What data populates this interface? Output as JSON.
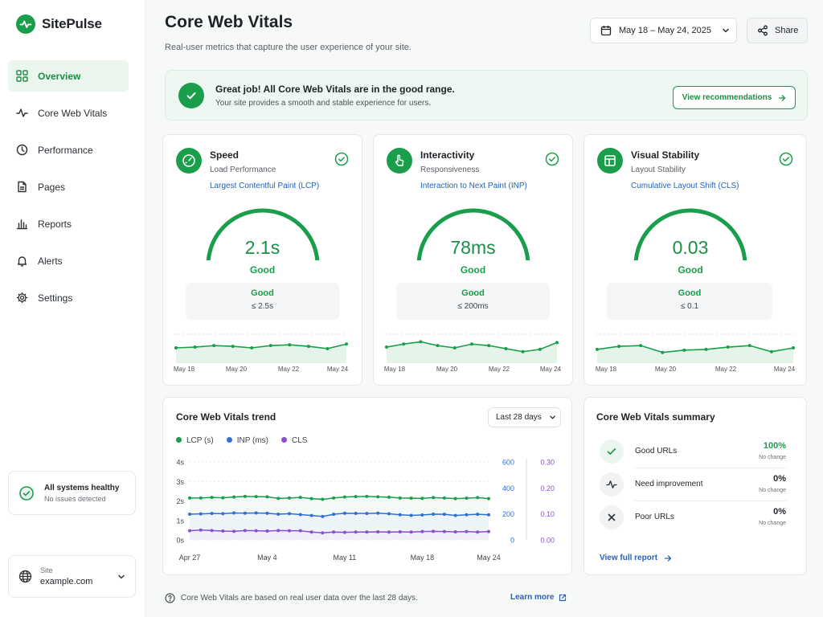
{
  "app": {
    "name": "SitePulse"
  },
  "colors": {
    "accent": "#1a9e4b",
    "lcp": "#1a9e4b",
    "inp": "#2f6fd6",
    "cls": "#8a4fcf"
  },
  "sidebar": {
    "items": [
      {
        "label": "Overview",
        "icon": "grid-icon",
        "active": true
      },
      {
        "label": "Core Web Vitals",
        "icon": "pulse-icon"
      },
      {
        "label": "Performance",
        "icon": "clock-icon"
      },
      {
        "label": "Pages",
        "icon": "page-icon"
      },
      {
        "label": "Reports",
        "icon": "bar-chart-icon"
      },
      {
        "label": "Alerts",
        "icon": "bell-icon"
      },
      {
        "label": "Settings",
        "icon": "gear-icon"
      }
    ],
    "health": {
      "title": "All systems healthy",
      "subtitle": "No issues detected"
    },
    "site": {
      "label": "Site",
      "value": "example.com"
    }
  },
  "header": {
    "title": "Core Web Vitals",
    "subtitle": "Real-user metrics that capture the user experience of your site.",
    "date_range": "May 18 – May 24, 2025",
    "share_label": "Share"
  },
  "banner": {
    "title": "Great job! All Core Web Vitals are in the good range.",
    "subtitle": "Your site provides a smooth and stable experience for users.",
    "button": "View recommendations"
  },
  "metrics": [
    {
      "title": "Speed",
      "subtitle": "Load Performance",
      "metric": "Largest Contentful Paint (LCP)",
      "value": "2.1s",
      "rating": "Good",
      "threshold_label": "Good",
      "threshold": "≤ 2.5s",
      "gauge_level": 0.95,
      "spark": [
        2.0,
        2.1,
        2.3,
        2.2,
        2.0,
        2.3,
        2.4,
        2.2,
        1.9,
        2.5
      ],
      "spark_x": [
        "May 18",
        "May 20",
        "May 22",
        "May 24"
      ]
    },
    {
      "title": "Interactivity",
      "subtitle": "Responsiveness",
      "metric": "Interaction to Next Paint (INP)",
      "value": "78ms",
      "rating": "Good",
      "threshold_label": "Good",
      "threshold": "≤ 200ms",
      "gauge_level": 0.95,
      "spark": [
        2.1,
        2.5,
        2.8,
        2.3,
        2.0,
        2.5,
        2.3,
        1.9,
        1.5,
        1.8,
        2.7
      ],
      "spark_x": [
        "May 18",
        "May 20",
        "May 22",
        "May 24"
      ]
    },
    {
      "title": "Visual Stability",
      "subtitle": "Layout Stability",
      "metric": "Cumulative Layout Shift (CLS)",
      "value": "0.03",
      "rating": "Good",
      "threshold_label": "Good",
      "threshold": "≤ 0.1",
      "gauge_level": 0.95,
      "spark": [
        1.8,
        2.2,
        2.3,
        1.4,
        1.7,
        1.8,
        2.1,
        2.3,
        1.5,
        2.0
      ],
      "spark_x": [
        "May 18",
        "May 20",
        "May 22",
        "May 24"
      ]
    }
  ],
  "trend": {
    "title": "Core Web Vitals trend",
    "range": "Last 28 days",
    "legend": [
      "LCP (s)",
      "INP (ms)",
      "CLS"
    ],
    "y_left": [
      "4s",
      "3s",
      "2s",
      "1s",
      "0s"
    ],
    "y_right1": [
      "600",
      "400",
      "200",
      "0"
    ],
    "y_right2": [
      "0.30",
      "0.20",
      "0.10",
      "0.00"
    ],
    "x_labels": [
      "Apr 27",
      "May 4",
      "May 11",
      "May 18",
      "May 24"
    ]
  },
  "chart_data": {
    "type": "line",
    "x": [
      "Apr 27",
      "Apr 28",
      "Apr 29",
      "Apr 30",
      "May 1",
      "May 2",
      "May 3",
      "May 4",
      "May 5",
      "May 6",
      "May 7",
      "May 8",
      "May 9",
      "May 10",
      "May 11",
      "May 12",
      "May 13",
      "May 14",
      "May 15",
      "May 16",
      "May 17",
      "May 18",
      "May 19",
      "May 20",
      "May 21",
      "May 22",
      "May 23",
      "May 24"
    ],
    "series": [
      {
        "name": "LCP (s)",
        "axis": "left",
        "values": [
          2.15,
          2.15,
          2.18,
          2.16,
          2.2,
          2.23,
          2.22,
          2.21,
          2.13,
          2.15,
          2.18,
          2.12,
          2.08,
          2.15,
          2.2,
          2.22,
          2.23,
          2.21,
          2.19,
          2.15,
          2.14,
          2.13,
          2.17,
          2.15,
          2.12,
          2.14,
          2.17,
          2.12
        ]
      },
      {
        "name": "INP (ms)",
        "axis": "right1",
        "values": [
          198,
          200,
          203,
          202,
          207,
          206,
          207,
          205,
          198,
          202,
          195,
          188,
          180,
          197,
          205,
          204,
          203,
          206,
          201,
          193,
          189,
          192,
          198,
          197,
          188,
          193,
          197,
          193
        ]
      },
      {
        "name": "CLS",
        "axis": "right2",
        "values": [
          0.035,
          0.038,
          0.036,
          0.034,
          0.033,
          0.036,
          0.035,
          0.034,
          0.036,
          0.035,
          0.035,
          0.03,
          0.027,
          0.03,
          0.029,
          0.03,
          0.03,
          0.031,
          0.03,
          0.031,
          0.03,
          0.032,
          0.033,
          0.032,
          0.031,
          0.032,
          0.03,
          0.032
        ]
      }
    ],
    "ylim_left": [
      0,
      4
    ],
    "ylim_right1": [
      0,
      600
    ],
    "ylim_right2": [
      0,
      0.3
    ],
    "grid": true,
    "legend_position": "top-left"
  },
  "summary": {
    "title": "Core Web Vitals summary",
    "rows": [
      {
        "label": "Good URLs",
        "pct": "100%",
        "change": "No change",
        "icon": "check-icon"
      },
      {
        "label": "Need improvement",
        "pct": "0%",
        "change": "No change",
        "icon": "pulse-icon"
      },
      {
        "label": "Poor URLs",
        "pct": "0%",
        "change": "No change",
        "icon": "x-icon"
      }
    ],
    "link": "View full report"
  },
  "footer": {
    "note": "Core Web Vitals are based on real user data over the last 28 days.",
    "learn_more": "Learn more"
  }
}
